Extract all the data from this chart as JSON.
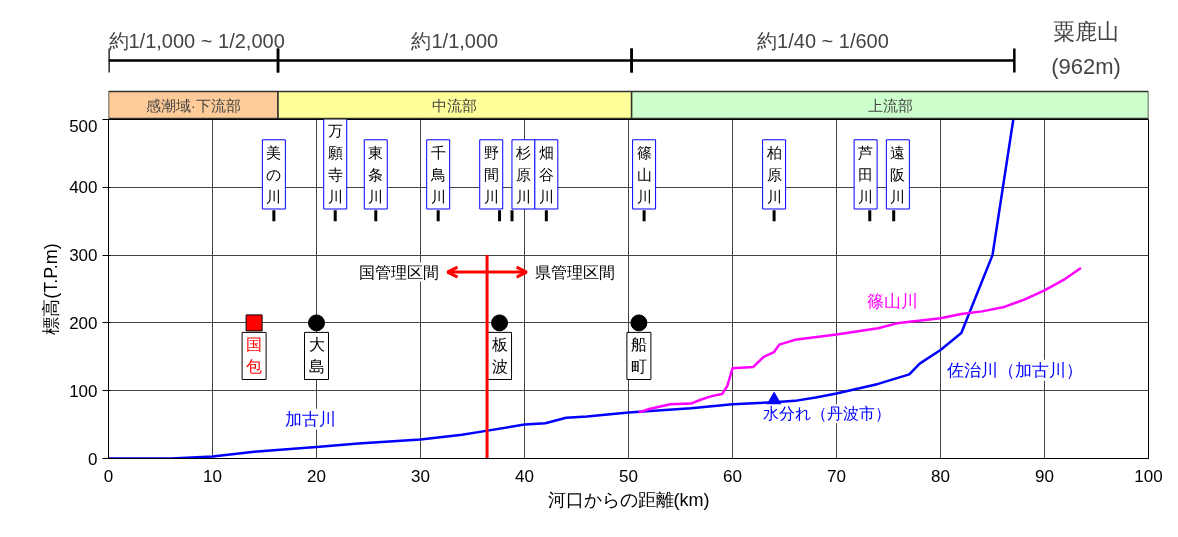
{
  "chart_data": {
    "type": "line",
    "xlabel": "河口からの距離(km)",
    "ylabel": "標高(T.P.m)",
    "xlim": [
      0,
      100
    ],
    "ylim": [
      0,
      500
    ],
    "xticks": [
      0,
      10,
      20,
      30,
      40,
      50,
      60,
      70,
      80,
      90,
      100
    ],
    "yticks": [
      0,
      100,
      200,
      300,
      400,
      500
    ],
    "grid": true,
    "series": [
      {
        "name": "加古川",
        "color": "#0000ff",
        "x": [
          0,
          6,
          10,
          14,
          20,
          24,
          30,
          34,
          36,
          40,
          42,
          44,
          46,
          50,
          56,
          60,
          64,
          66,
          68,
          70,
          74,
          77,
          78,
          80,
          82,
          85,
          86,
          87
        ],
        "values": [
          0,
          0,
          3,
          10,
          17,
          22,
          28,
          35,
          40,
          50,
          52,
          60,
          62,
          68,
          74,
          80,
          83,
          85,
          90,
          96,
          110,
          124,
          140,
          160,
          185,
          300,
          400,
          500
        ]
      },
      {
        "name": "篠山川",
        "color": "#ff00ff",
        "x": [
          51,
          52,
          54,
          56,
          57,
          58,
          59,
          59.5,
          60,
          62,
          63,
          64,
          64.5,
          66,
          70,
          74,
          76,
          80,
          82,
          84,
          86,
          88,
          90,
          92,
          93.5
        ],
        "values": [
          68,
          73,
          80,
          81,
          87,
          92,
          95,
          107,
          133,
          135,
          150,
          157,
          168,
          175,
          183,
          192,
          200,
          207,
          213,
          217,
          223,
          234,
          248,
          265,
          281
        ]
      },
      {
        "type": "scatter",
        "name": "国包",
        "color": "#ff0000",
        "marker": "square",
        "x": [
          14
        ],
        "values": [
          200
        ]
      },
      {
        "type": "scatter",
        "name": "大島",
        "color": "#000000",
        "marker": "circle",
        "x": [
          20
        ],
        "values": [
          200
        ]
      },
      {
        "type": "scatter",
        "name": "板波",
        "color": "#000000",
        "marker": "circle",
        "x": [
          37.6
        ],
        "values": [
          200
        ]
      },
      {
        "type": "scatter",
        "name": "船町",
        "color": "#000000",
        "marker": "circle",
        "x": [
          51
        ],
        "values": [
          200
        ]
      },
      {
        "type": "scatter",
        "name": "水分れ（丹波市）",
        "color": "#0000ff",
        "marker": "triangle",
        "x": [
          64
        ],
        "values": [
          84
        ]
      }
    ],
    "ref_lines": [
      {
        "axis": "x",
        "value": 36.4,
        "color": "#ff0000"
      }
    ],
    "annotations": [
      "粟鹿山\n(962m)",
      "佐治川（加古川）",
      "国管理区間",
      "県管理区間",
      "美の川",
      "万願寺川",
      "東条川",
      "千鳥川",
      "野間川",
      "杉原川",
      "畑谷川",
      "篠山川",
      "柏原川",
      "芦田川",
      "遠阪川",
      "感潮域·下流部",
      "中流部",
      "上流部",
      "約1/1,000 ~ 1/2,000",
      "約1/1,000",
      "約1/40 ~ 1/600"
    ]
  }
}
